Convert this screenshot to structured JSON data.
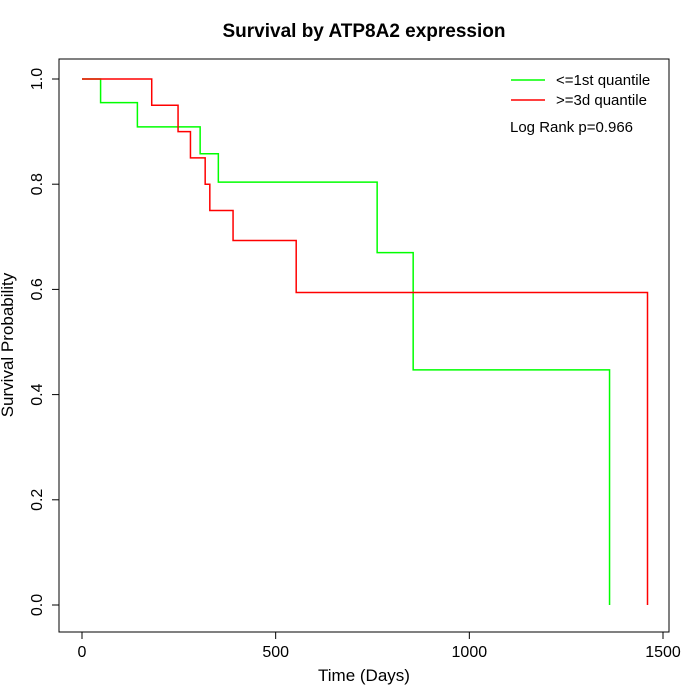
{
  "chart_data": {
    "type": "line",
    "title": "Survival by ATP8A2 expression",
    "xlabel": "Time (Days)",
    "ylabel": "Survival Probability",
    "xlim": [
      0,
      1500
    ],
    "ylim": [
      0,
      1
    ],
    "x_ticks": [
      "0",
      "500",
      "1000",
      "1500"
    ],
    "y_ticks": [
      "0.0",
      "0.2",
      "0.4",
      "0.6",
      "0.8",
      "1.0"
    ],
    "grid": false,
    "legend_position": "top-right",
    "annotation": "Log Rank p=0.966",
    "series": [
      {
        "name": "<=1st quantile",
        "color": "#00ff00",
        "step": true,
        "x": [
          0,
          48,
          143,
          305,
          352,
          762,
          855,
          1362,
          1362
        ],
        "y": [
          1.0,
          0.955,
          0.909,
          0.858,
          0.804,
          0.67,
          0.447,
          0.447,
          0.0
        ]
      },
      {
        "name": ">=3d quantile",
        "color": "#ff0000",
        "step": true,
        "x": [
          0,
          180,
          248,
          280,
          318,
          330,
          390,
          553,
          1460,
          1460
        ],
        "y": [
          1.0,
          0.95,
          0.9,
          0.85,
          0.8,
          0.75,
          0.693,
          0.594,
          0.594,
          0.0
        ]
      }
    ]
  }
}
